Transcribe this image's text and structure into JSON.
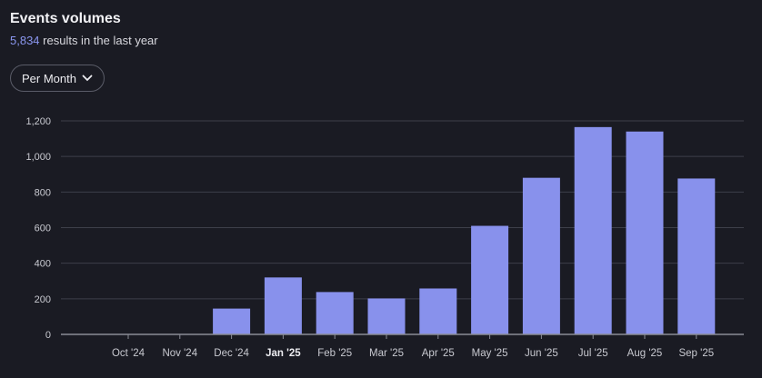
{
  "header": {
    "title": "Events volumes",
    "total": "5,834",
    "subtitle_suffix": " results in the last year"
  },
  "controls": {
    "period_label": "Per Month"
  },
  "colors": {
    "bar": "#8891ec",
    "grid": "#3d3f4a",
    "axis": "#8a8c96",
    "text": "#c8c9d0"
  },
  "chart_data": {
    "type": "bar",
    "title": "Events volumes",
    "categories": [
      "Oct '24",
      "Nov '24",
      "Dec '24",
      "Jan '25",
      "Feb '25",
      "Mar '25",
      "Apr '25",
      "May '25",
      "Jun '25",
      "Jul '25",
      "Aug '25",
      "Sep '25"
    ],
    "values": [
      0,
      0,
      145,
      320,
      238,
      202,
      258,
      610,
      880,
      1165,
      1140,
      876
    ],
    "highlighted_category": "Jan '25",
    "yticks": [
      "0",
      "200",
      "400",
      "600",
      "800",
      "1,000",
      "1,200"
    ],
    "ytick_values": [
      0,
      200,
      400,
      600,
      800,
      1000,
      1200
    ],
    "ylim": [
      0,
      1200
    ],
    "grid": true
  }
}
